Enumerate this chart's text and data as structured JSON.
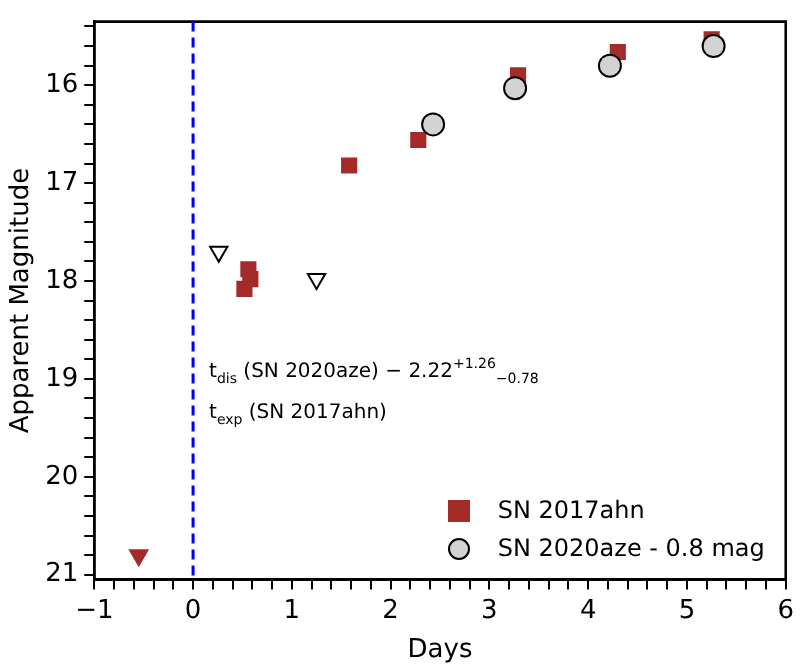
{
  "chart_data": {
    "type": "scatter",
    "xlabel": "Days",
    "ylabel": "Apparent Magnitude",
    "series": [
      {
        "name": "SN 2017ahn",
        "color": "#a52a2a",
        "marker": "square",
        "x": [
          0.52,
          0.56,
          0.58,
          1.58,
          2.28,
          3.29,
          4.3,
          5.25
        ],
        "values": [
          18.08,
          17.88,
          17.98,
          16.82,
          16.56,
          15.9,
          15.66,
          15.53
        ]
      },
      {
        "name": "SN 2020aze - 0.8 mag",
        "color": "#d3d3d3",
        "marker": "circle",
        "x": [
          2.43,
          3.26,
          4.22,
          5.27
        ],
        "values": [
          16.4,
          16.03,
          15.8,
          15.6
        ]
      },
      {
        "color": "#a52a2a",
        "marker": "triangle",
        "x": [
          -0.55
        ],
        "values": [
          20.8
        ]
      },
      {
        "color": "#ffffff",
        "marker": "triangle",
        "x": [
          0.26,
          1.25
        ],
        "values": [
          17.7,
          17.98
        ]
      }
    ],
    "xlim": [
      -1,
      6
    ],
    "xticks": [
      -1,
      {
        "value": -0.8,
        "label": null
      },
      {
        "value": -0.6,
        "label": null
      },
      {
        "value": -0.4,
        "label": null
      },
      {
        "value": -0.2,
        "label": null
      },
      0,
      {
        "value": 0.2,
        "label": null
      },
      {
        "value": 0.4,
        "label": null
      },
      {
        "value": 0.6,
        "label": null
      },
      {
        "value": 0.8,
        "label": null
      },
      1,
      {
        "value": 1.2,
        "label": null
      },
      {
        "value": 1.4,
        "label": null
      },
      {
        "value": 1.6,
        "label": null
      },
      {
        "value": 1.8,
        "label": null
      },
      2,
      {
        "value": 2.2,
        "label": null
      },
      {
        "value": 2.4,
        "label": null
      },
      {
        "value": 2.6,
        "label": null
      },
      {
        "value": 2.8,
        "label": null
      },
      3,
      {
        "value": 3.2,
        "label": null
      },
      {
        "value": 3.4,
        "label": null
      },
      {
        "value": 3.6,
        "label": null
      },
      {
        "value": 3.8,
        "label": null
      },
      4,
      {
        "value": 4.2,
        "label": null
      },
      {
        "value": 4.4,
        "label": null
      },
      {
        "value": 4.6,
        "label": null
      },
      {
        "value": 4.8,
        "label": null
      },
      5,
      {
        "value": 5.2,
        "label": null
      },
      {
        "value": 5.4,
        "label": null
      },
      {
        "value": 5.6,
        "label": null
      },
      {
        "value": 5.8,
        "label": null
      },
      6
    ],
    "ylim": [
      21.05,
      15.35
    ],
    "yticks": [
      {
        "value": 15.4,
        "label": null
      },
      {
        "value": 15.6,
        "label": null
      },
      {
        "value": 15.8,
        "label": null
      },
      16,
      {
        "value": 16.2,
        "label": null
      },
      {
        "value": 16.4,
        "label": null
      },
      {
        "value": 16.6,
        "label": null
      },
      {
        "value": 16.8,
        "label": null
      },
      17,
      {
        "value": 17.2,
        "label": null
      },
      {
        "value": 17.4,
        "label": null
      },
      {
        "value": 17.6,
        "label": null
      },
      {
        "value": 17.8,
        "label": null
      },
      18,
      {
        "value": 18.2,
        "label": null
      },
      {
        "value": 18.4,
        "label": null
      },
      {
        "value": 18.6,
        "label": null
      },
      {
        "value": 18.8,
        "label": null
      },
      19,
      {
        "value": 19.2,
        "label": null
      },
      {
        "value": 19.4,
        "label": null
      },
      {
        "value": 19.6,
        "label": null
      },
      {
        "value": 19.8,
        "label": null
      },
      20,
      {
        "value": 20.2,
        "label": null
      },
      {
        "value": 20.4,
        "label": null
      },
      {
        "value": 20.6,
        "label": null
      },
      {
        "value": 20.8,
        "label": null
      },
      21
    ],
    "ref_lines": [
      {
        "axis": "x",
        "value": 0,
        "color": "#0000ff",
        "line_style": "dashed"
      }
    ],
    "annotations": [
      "t$_{dis}$ (SN 2020aze) − 2.22$^{+1.26}$$_{−0.78}$",
      "t$_{exp}$ (SN 2017ahn)"
    ],
    "grid": false,
    "legend": "bottom right"
  }
}
